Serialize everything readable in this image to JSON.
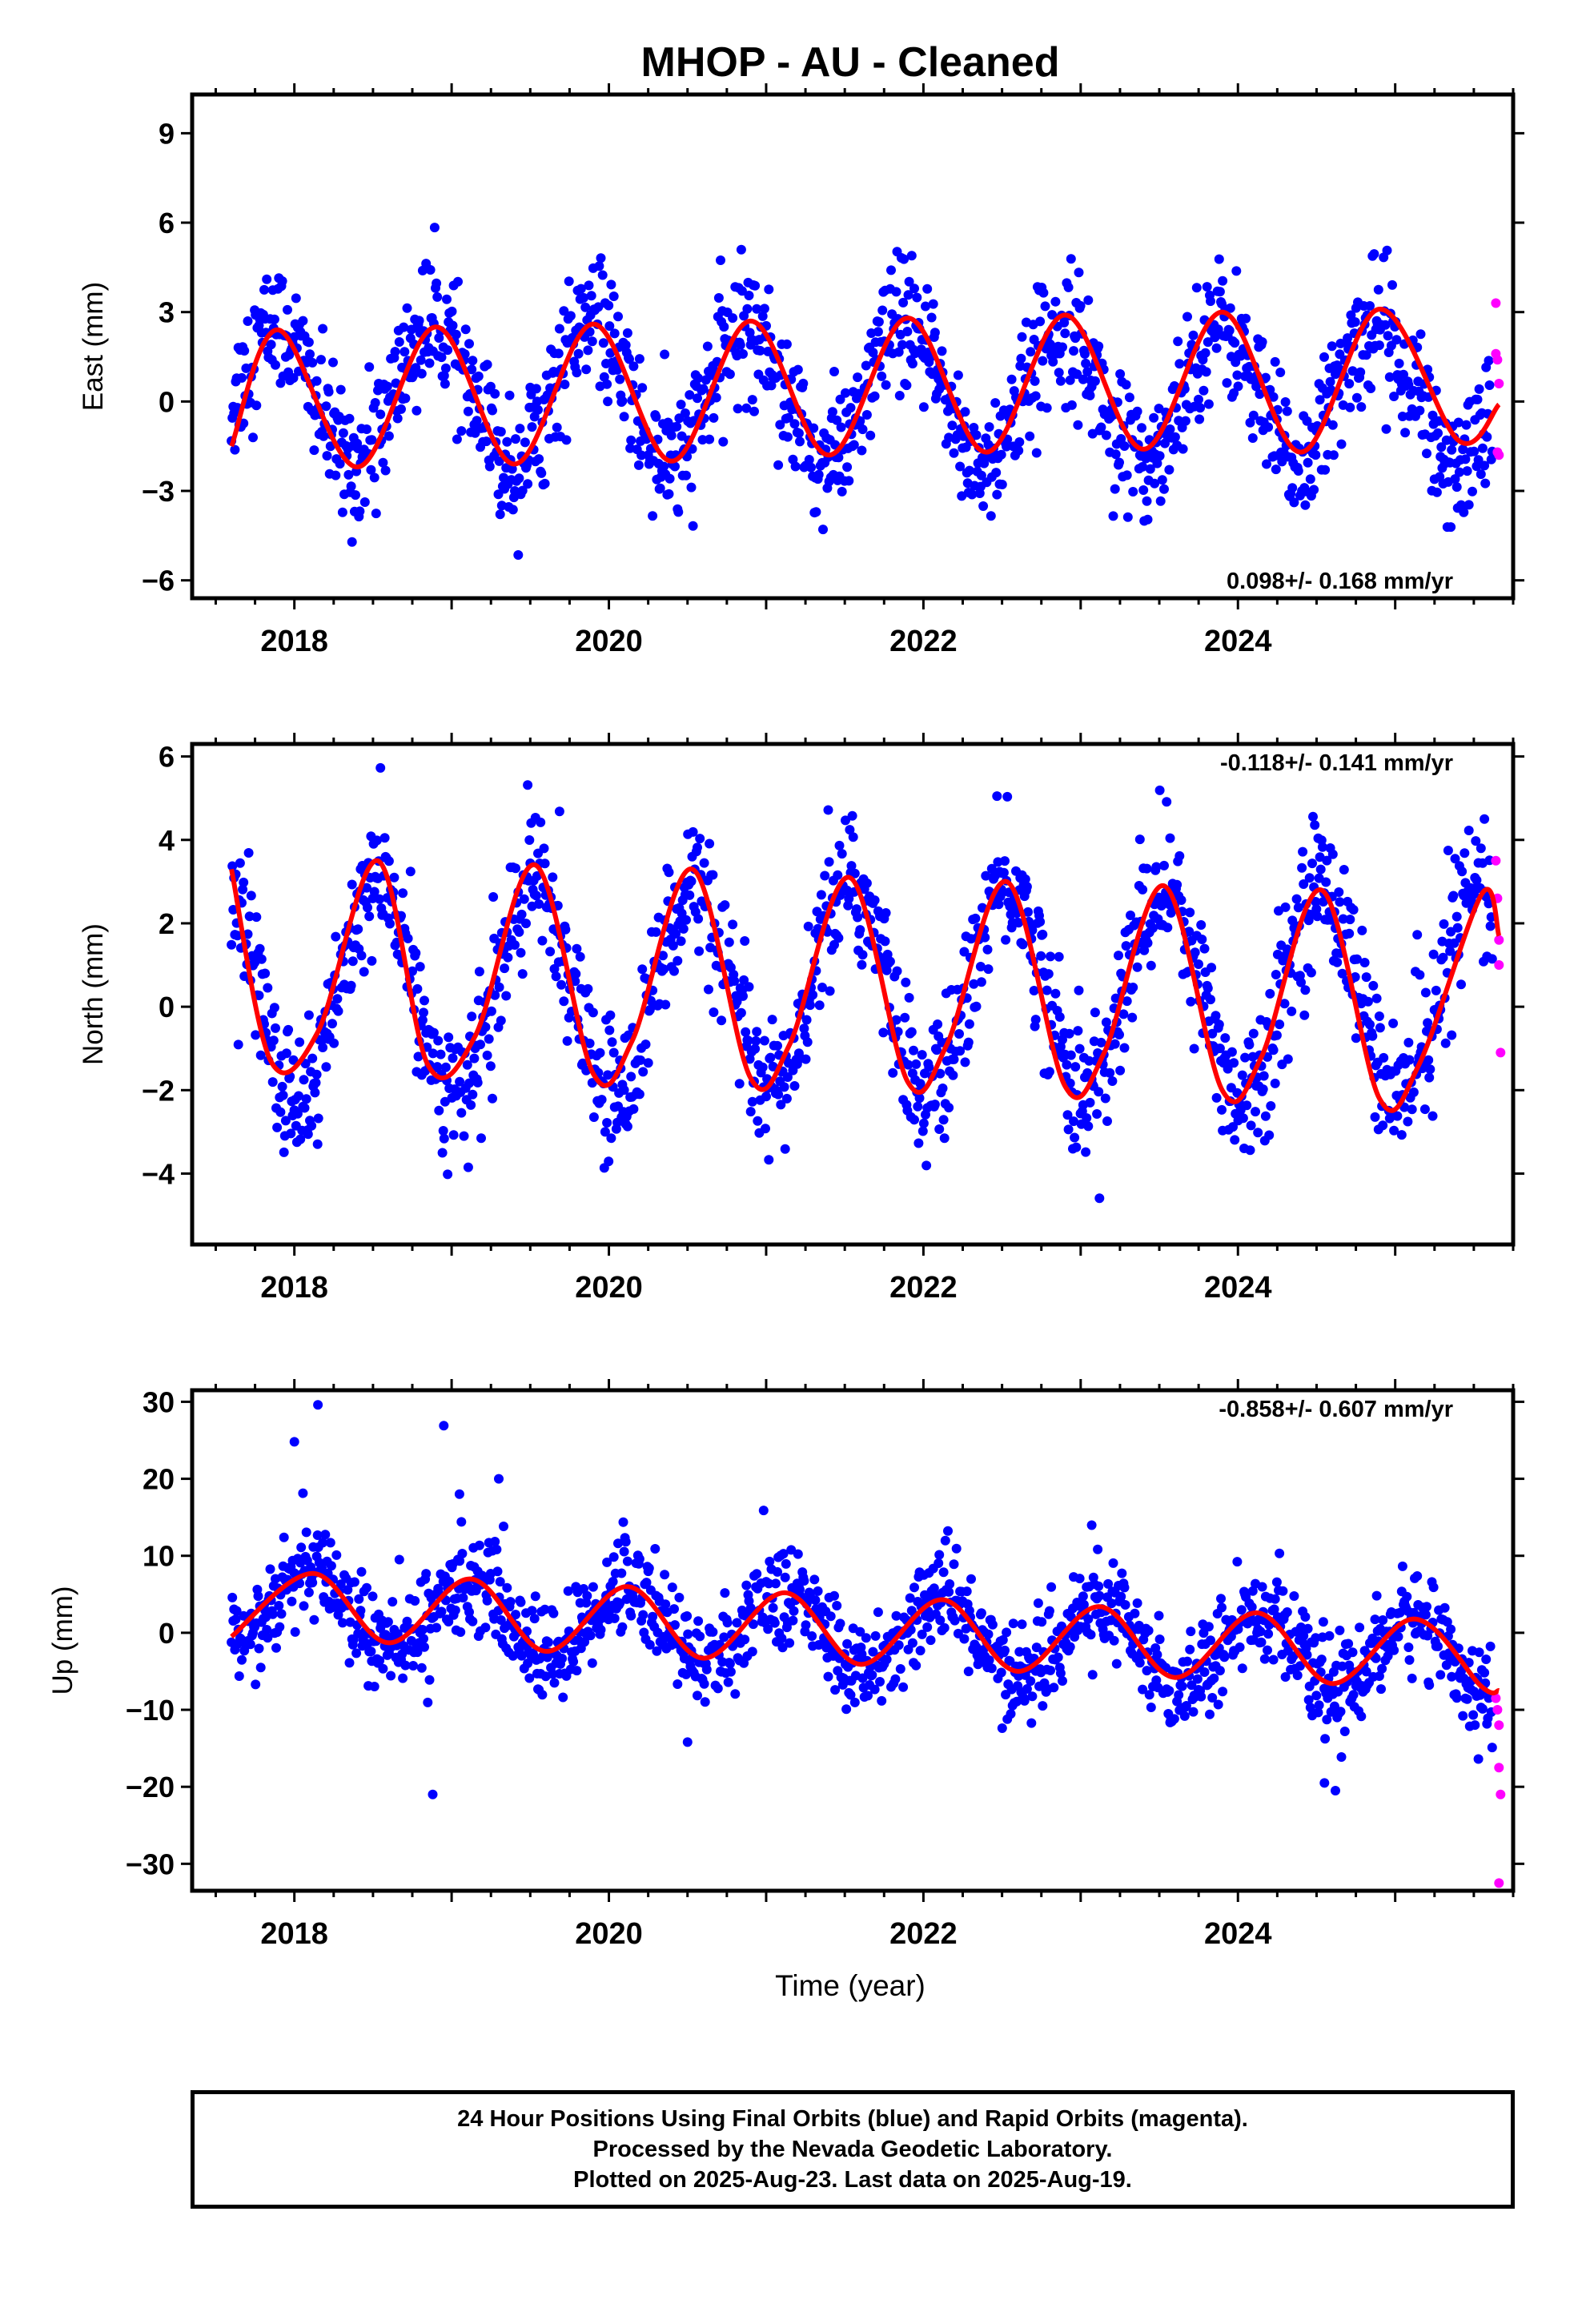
{
  "title": "MHOP  - AU - Cleaned",
  "colors": {
    "final_orbits": "#0000ff",
    "rapid_orbits": "#ff00ff",
    "model_fit": "#ff0000",
    "frame": "#000000"
  },
  "time_axis_label": "Time (year)",
  "x_tick_labels": [
    "2018",
    "2020",
    "2022",
    "2024"
  ],
  "footer": {
    "line1": "24 Hour Positions Using Final Orbits (blue) and Rapid Orbits (magenta).",
    "line2": "Processed by the Nevada Geodetic Laboratory.",
    "line3": "Plotted on 2025-Aug-23. Last data on 2025-Aug-19."
  },
  "chart_data": [
    {
      "type": "scatter",
      "id": "east",
      "ylabel": "East (mm)",
      "rate_label": "0.098+/- 0.168 mm/yr",
      "xlim": [
        2017.35,
        2025.75
      ],
      "ylim": [
        -6.6,
        10.3
      ],
      "yticks": [
        -6,
        -3,
        0,
        3,
        6,
        9
      ],
      "xticks": [
        2018,
        2020,
        2022,
        2024
      ],
      "series": [
        {
          "role": "final_orbits_blue",
          "seasonal": {
            "amplitude": 2.3,
            "peak_year_fraction": 0.88,
            "offset": 0.25,
            "noise_sd": 1.1,
            "start": 2017.6,
            "end": 2025.62,
            "days_per_point": 2
          }
        },
        {
          "role": "rapid_orbits_magenta",
          "x": [
            2025.64,
            2025.64,
            2025.65,
            2025.66,
            2025.66,
            2025.65
          ],
          "y": [
            3.3,
            1.6,
            1.4,
            0.6,
            -1.8,
            -1.7
          ]
        },
        {
          "role": "model_fit_red",
          "x": [
            2017.6,
            2017.9,
            2018.4,
            2018.9,
            2019.4,
            2019.9,
            2020.4,
            2020.9,
            2021.4,
            2021.9,
            2022.4,
            2022.9,
            2023.4,
            2023.9,
            2024.4,
            2024.9,
            2025.4,
            2025.66
          ],
          "y": [
            -1.5,
            2.4,
            -2.2,
            2.5,
            -2.1,
            2.6,
            -2.0,
            2.7,
            -1.8,
            2.8,
            -1.7,
            2.9,
            -1.6,
            3.0,
            -1.7,
            3.1,
            -1.3,
            -0.1
          ]
        }
      ]
    },
    {
      "type": "scatter",
      "id": "north",
      "ylabel": "North (mm)",
      "rate_label": "-0.118+/- 0.141 mm/yr",
      "xlim": [
        2017.35,
        2025.75
      ],
      "ylim": [
        -5.7,
        6.3
      ],
      "yticks": [
        -4,
        -2,
        0,
        2,
        4,
        6
      ],
      "xticks": [
        2018,
        2020,
        2022,
        2024
      ],
      "series": [
        {
          "role": "final_orbits_blue",
          "seasonal": {
            "amplitude": 2.5,
            "peak_year_fraction": 0.53,
            "offset": 0.4,
            "noise_sd": 0.85,
            "start": 2017.6,
            "end": 2025.62,
            "days_per_point": 2
          }
        },
        {
          "role": "rapid_orbits_magenta",
          "x": [
            2025.64,
            2025.65,
            2025.66,
            2025.66,
            2025.67
          ],
          "y": [
            3.5,
            2.6,
            1.6,
            1.0,
            -1.1
          ]
        },
        {
          "role": "model_fit_red",
          "x": [
            2017.6,
            2017.85,
            2018.15,
            2018.53,
            2018.85,
            2019.15,
            2019.53,
            2019.9,
            2020.15,
            2020.53,
            2020.9,
            2021.15,
            2021.53,
            2021.9,
            2022.15,
            2022.53,
            2022.9,
            2023.15,
            2023.53,
            2023.9,
            2024.15,
            2024.53,
            2024.9,
            2025.15,
            2025.55,
            2025.66
          ],
          "y": [
            3.3,
            -1.3,
            -0.6,
            3.5,
            -1.4,
            -0.7,
            3.4,
            -1.6,
            -0.8,
            3.3,
            -1.7,
            -0.9,
            3.1,
            -1.8,
            -0.9,
            3.0,
            -1.9,
            -1.1,
            2.9,
            -2.0,
            -1.2,
            2.8,
            -2.2,
            -1.4,
            2.7,
            1.7
          ]
        }
      ]
    },
    {
      "type": "scatter",
      "id": "up",
      "ylabel": "Up (mm)",
      "rate_label": "-0.858+/- 0.607 mm/yr",
      "xlim": [
        2017.35,
        2025.75
      ],
      "ylim": [
        -33.5,
        31.5
      ],
      "yticks": [
        -30,
        -20,
        -10,
        0,
        10,
        20,
        30
      ],
      "xticks": [
        2018,
        2020,
        2022,
        2024
      ],
      "series": [
        {
          "role": "final_orbits_blue",
          "seasonal": {
            "amplitude": 4.8,
            "peak_year_fraction": 0.12,
            "offset": 3.2,
            "trend": -0.86,
            "noise_sd": 3.2,
            "start": 2017.6,
            "end": 2025.62,
            "days_per_point": 2
          }
        },
        {
          "role": "final_orbits_blue_outliers",
          "x": [
            2018.0,
            2018.15,
            2018.95,
            2019.05,
            2019.3,
            2018.88,
            2020.5,
            2024.55,
            2024.62
          ],
          "y": [
            24.8,
            29.6,
            26.9,
            18.0,
            20.0,
            -21.0,
            -14.2,
            -19.5,
            -20.5
          ]
        },
        {
          "role": "rapid_orbits_magenta",
          "x": [
            2025.64,
            2025.65,
            2025.66,
            2025.66,
            2025.67,
            2025.66
          ],
          "y": [
            -8.5,
            -10.0,
            -12.0,
            -17.5,
            -21.0,
            -32.5
          ]
        },
        {
          "role": "model_fit_red",
          "x": [
            2017.6,
            2018.12,
            2018.6,
            2019.12,
            2019.6,
            2020.12,
            2020.6,
            2021.12,
            2021.6,
            2022.12,
            2022.6,
            2023.12,
            2023.6,
            2024.12,
            2024.6,
            2025.12,
            2025.55,
            2025.66
          ],
          "y": [
            -0.5,
            7.7,
            -1.3,
            7.0,
            -2.4,
            6.0,
            -3.3,
            5.2,
            -4.1,
            4.3,
            -5.0,
            3.4,
            -5.8,
            2.6,
            -6.6,
            1.8,
            -7.0,
            -7.5
          ]
        }
      ]
    }
  ]
}
